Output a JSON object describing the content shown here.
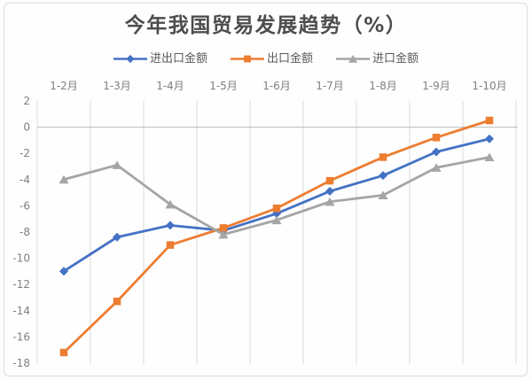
{
  "chart_data": {
    "type": "line",
    "title": "今年我国贸易发展趋势（%）",
    "categories": [
      "1-2月",
      "1-3月",
      "1-4月",
      "1-5月",
      "1-6月",
      "1-7月",
      "1-8月",
      "1-9月",
      "1-10月"
    ],
    "series": [
      {
        "name": "进出口金额",
        "marker": "diamond",
        "color": "#4472C4",
        "values": [
          -11.0,
          -8.4,
          -7.5,
          -7.9,
          -6.6,
          -4.9,
          -3.7,
          -1.9,
          -0.9
        ]
      },
      {
        "name": "出口金额",
        "marker": "square",
        "color": "#ED7D31",
        "values": [
          -17.2,
          -13.3,
          -9.0,
          -7.7,
          -6.2,
          -4.1,
          -2.3,
          -0.8,
          0.5
        ]
      },
      {
        "name": "进口金额",
        "marker": "triangle",
        "color": "#A5A5A5",
        "values": [
          -4.0,
          -2.9,
          -5.9,
          -8.2,
          -7.1,
          -5.7,
          -5.2,
          -3.1,
          -2.3
        ]
      }
    ],
    "ylim": [
      -18,
      2
    ],
    "ytick_step": 2,
    "yticks": [
      2,
      0,
      -2,
      -4,
      -6,
      -8,
      -10,
      -12,
      -14,
      -16,
      -18
    ],
    "grid": "vertical-only",
    "legend_position": "top",
    "category_labels_position": "top",
    "title_color": "#4d4d4d",
    "axis_label_color": "#7f7f7f",
    "legend_label_color": "#595959",
    "gridline_color": "#d9d9d9",
    "zero_line_color": "#bfbfbf"
  }
}
